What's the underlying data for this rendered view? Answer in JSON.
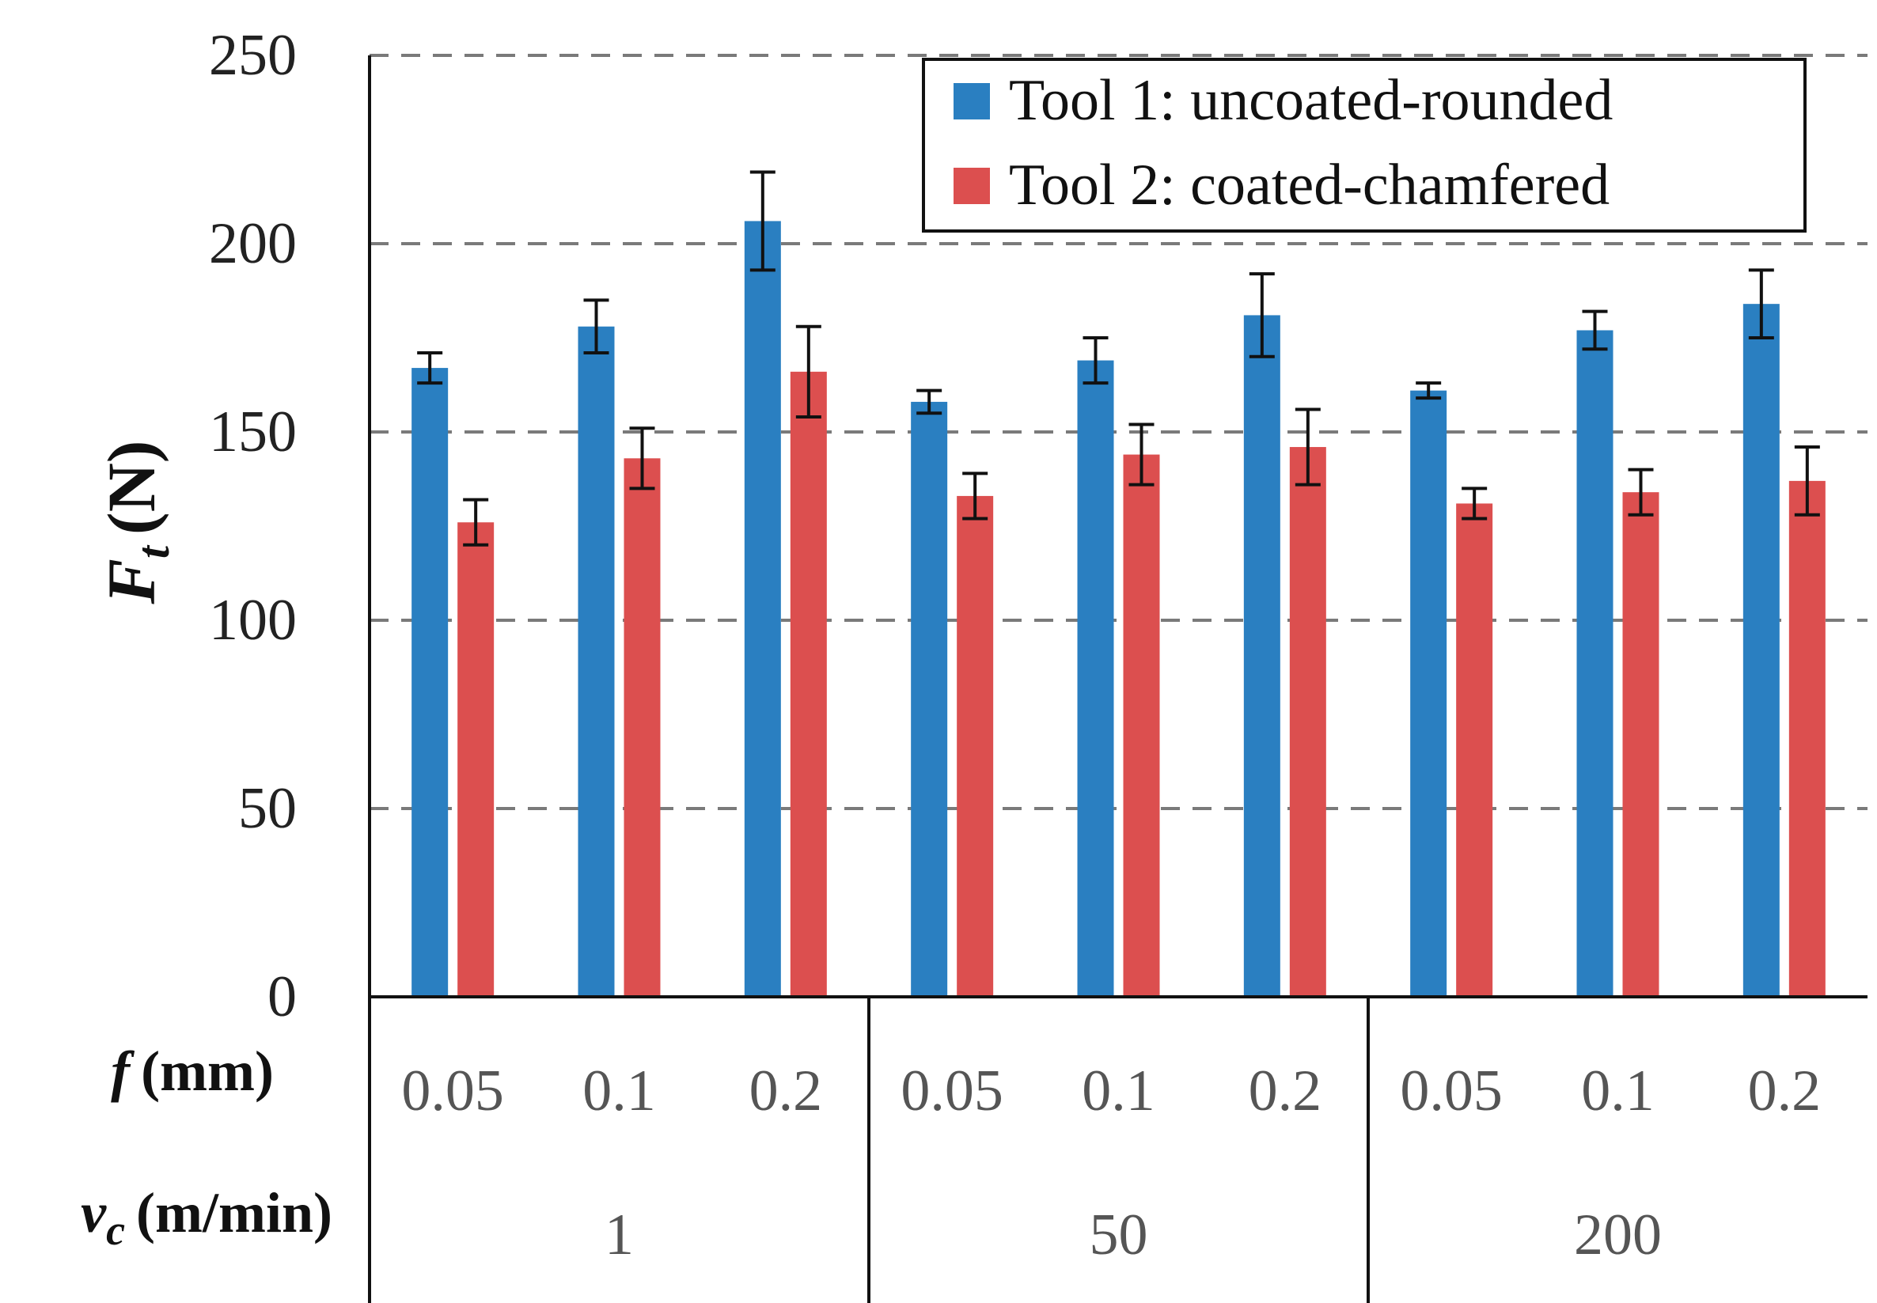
{
  "chart_data": {
    "type": "bar",
    "ylabel_symbol": "F",
    "ylabel_subscript": "t",
    "ylabel_unit": "(N)",
    "ylim": [
      0,
      250
    ],
    "yticks": [
      0,
      50,
      100,
      150,
      200,
      250
    ],
    "grid": "horizontal dashed",
    "legend_position": "top-right",
    "feed_row_label": {
      "symbol": "f",
      "unit": "(mm)"
    },
    "speed_row_label": {
      "symbol": "v",
      "subscript": "c",
      "unit": "(m/min)"
    },
    "feed_labels": [
      "0.05",
      "0.1",
      "0.2",
      "0.05",
      "0.1",
      "0.2",
      "0.05",
      "0.1",
      "0.2"
    ],
    "speed_groups": [
      "1",
      "50",
      "200"
    ],
    "series": [
      {
        "name": "Tool 1: uncoated-rounded",
        "color": "#2a7fc1",
        "values": [
          167,
          178,
          206,
          158,
          169,
          181,
          161,
          177,
          184
        ],
        "errors": [
          4,
          7,
          13,
          3,
          6,
          11,
          2,
          5,
          9
        ]
      },
      {
        "name": "Tool 2: coated-chamfered",
        "color": "#dc4f4f",
        "values": [
          126,
          143,
          166,
          133,
          144,
          146,
          131,
          134,
          137
        ],
        "errors": [
          6,
          8,
          12,
          6,
          8,
          10,
          4,
          6,
          9
        ]
      }
    ]
  }
}
